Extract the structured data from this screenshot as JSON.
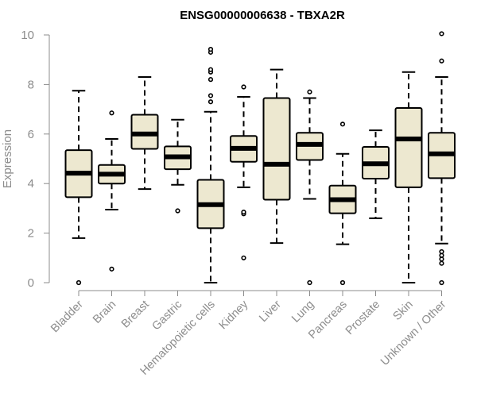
{
  "colors": {
    "box_fill": "#ede8d0",
    "stroke": "#000000",
    "axis": "#8c8c8c",
    "label": "#8c8c8c",
    "title": "#000000"
  },
  "chart_data": {
    "type": "boxplot",
    "title": "ENSG00000006638 - TBXA2R",
    "xlabel": "",
    "ylabel": "Expression",
    "ylim": [
      0,
      10
    ],
    "yticks": [
      0,
      2,
      4,
      6,
      8,
      10
    ],
    "grid": false,
    "categories": [
      "Bladder",
      "Brain",
      "Breast",
      "Gastric",
      "Hematopoietic cells",
      "Kidney",
      "Liver",
      "Lung",
      "Pancreas",
      "Prostate",
      "Skin",
      "Unknown / Other"
    ],
    "boxes": [
      {
        "name": "Bladder",
        "whisker_low": 1.8,
        "q1": 3.45,
        "median": 4.42,
        "q3": 5.35,
        "whisker_high": 7.75,
        "outliers": [
          0.0
        ]
      },
      {
        "name": "Brain",
        "whisker_low": 2.95,
        "q1": 4.0,
        "median": 4.38,
        "q3": 4.75,
        "whisker_high": 5.8,
        "outliers": [
          0.55,
          6.85
        ]
      },
      {
        "name": "Breast",
        "whisker_low": 3.78,
        "q1": 5.4,
        "median": 6.0,
        "q3": 6.78,
        "whisker_high": 8.3,
        "outliers": []
      },
      {
        "name": "Gastric",
        "whisker_low": 3.95,
        "q1": 4.58,
        "median": 5.08,
        "q3": 5.5,
        "whisker_high": 6.58,
        "outliers": [
          2.9
        ]
      },
      {
        "name": "Hematopoietic cells",
        "whisker_low": 0.0,
        "q1": 2.2,
        "median": 3.15,
        "q3": 4.15,
        "whisker_high": 6.9,
        "outliers": [
          7.3,
          7.55,
          8.2,
          8.5,
          8.6,
          9.3,
          9.42
        ]
      },
      {
        "name": "Kidney",
        "whisker_low": 3.85,
        "q1": 4.88,
        "median": 5.42,
        "q3": 5.92,
        "whisker_high": 7.5,
        "outliers": [
          1.0,
          2.78,
          2.85,
          7.9
        ]
      },
      {
        "name": "Liver",
        "whisker_low": 1.6,
        "q1": 3.35,
        "median": 4.78,
        "q3": 7.45,
        "whisker_high": 8.6,
        "outliers": []
      },
      {
        "name": "Lung",
        "whisker_low": 3.38,
        "q1": 4.95,
        "median": 5.58,
        "q3": 6.05,
        "whisker_high": 7.45,
        "outliers": [
          0.0,
          7.7
        ]
      },
      {
        "name": "Pancreas",
        "whisker_low": 1.55,
        "q1": 2.8,
        "median": 3.35,
        "q3": 3.92,
        "whisker_high": 5.2,
        "outliers": [
          0.0,
          6.4
        ]
      },
      {
        "name": "Prostate",
        "whisker_low": 2.6,
        "q1": 4.2,
        "median": 4.8,
        "q3": 5.48,
        "whisker_high": 6.15,
        "outliers": []
      },
      {
        "name": "Skin",
        "whisker_low": 0.0,
        "q1": 3.85,
        "median": 5.8,
        "q3": 7.05,
        "whisker_high": 8.5,
        "outliers": []
      },
      {
        "name": "Unknown / Other",
        "whisker_low": 1.58,
        "q1": 4.22,
        "median": 5.2,
        "q3": 6.05,
        "whisker_high": 8.3,
        "outliers": [
          0.0,
          0.78,
          0.95,
          1.1,
          1.25,
          8.95,
          10.05
        ]
      }
    ]
  }
}
